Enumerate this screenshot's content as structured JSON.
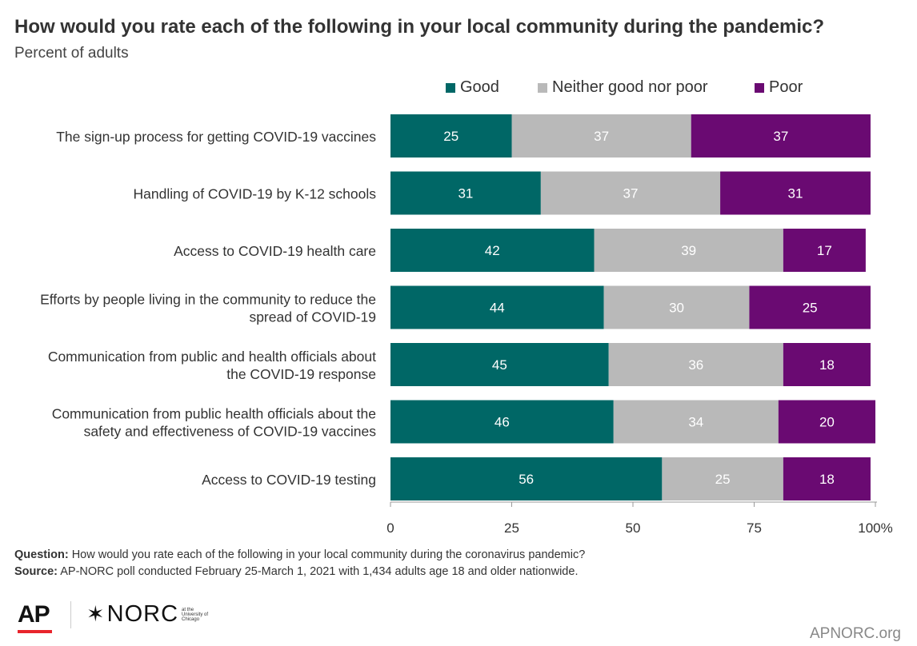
{
  "chart_data": {
    "type": "bar",
    "orientation": "horizontal",
    "stacked": true,
    "title": "How would you rate each of the following in your local community during the pandemic?",
    "subtitle": "Percent of adults",
    "categories": [
      "The sign-up process for getting COVID-19 vaccines",
      "Handling of COVID-19 by K-12 schools",
      "Access to COVID-19 health care",
      "Efforts by people living in the community to reduce the spread of COVID-19",
      "Communication from public and health officials about the COVID-19 response",
      "Communication from public health officials about the safety and effectiveness of COVID-19 vaccines",
      "Access to COVID-19 testing"
    ],
    "category_lines": [
      [
        "The sign-up process for getting COVID-19 vaccines"
      ],
      [
        "Handling of COVID-19 by K-12 schools"
      ],
      [
        "Access to COVID-19 health care"
      ],
      [
        "Efforts by people living in the community to reduce the",
        "spread of COVID-19"
      ],
      [
        "Communication from public and health officials about",
        "the COVID-19 response"
      ],
      [
        "Communication from public health officials about the",
        "safety and effectiveness of COVID-19 vaccines"
      ],
      [
        "Access to COVID-19 testing"
      ]
    ],
    "series": [
      {
        "name": "Good",
        "color": "#006766",
        "values": [
          25,
          31,
          42,
          44,
          45,
          46,
          56
        ]
      },
      {
        "name": "Neither good nor poor",
        "color": "#b9b9b9",
        "values": [
          37,
          37,
          39,
          30,
          36,
          34,
          25
        ]
      },
      {
        "name": "Poor",
        "color": "#6a0a72",
        "values": [
          37,
          31,
          17,
          25,
          18,
          20,
          18
        ]
      }
    ],
    "xlim": [
      0,
      100
    ],
    "xticks": [
      "0",
      "25",
      "50",
      "75",
      "100%"
    ],
    "xtick_values": [
      0,
      25,
      50,
      75,
      100
    ],
    "grid": false,
    "legend_position": "top"
  },
  "footnotes": {
    "question_label": "Question:",
    "question_text": " How would you rate each of the following in your local community during the coronavirus pandemic?",
    "source_label": "Source:",
    "source_text": " AP-NORC poll conducted February 25-March 1, 2021 with 1,434 adults age 18 and older nationwide."
  },
  "logos": {
    "ap": "AP",
    "norc": "NORC",
    "norc_small": [
      "at the",
      "University of",
      "Chicago"
    ]
  },
  "site": "APNORC.org"
}
